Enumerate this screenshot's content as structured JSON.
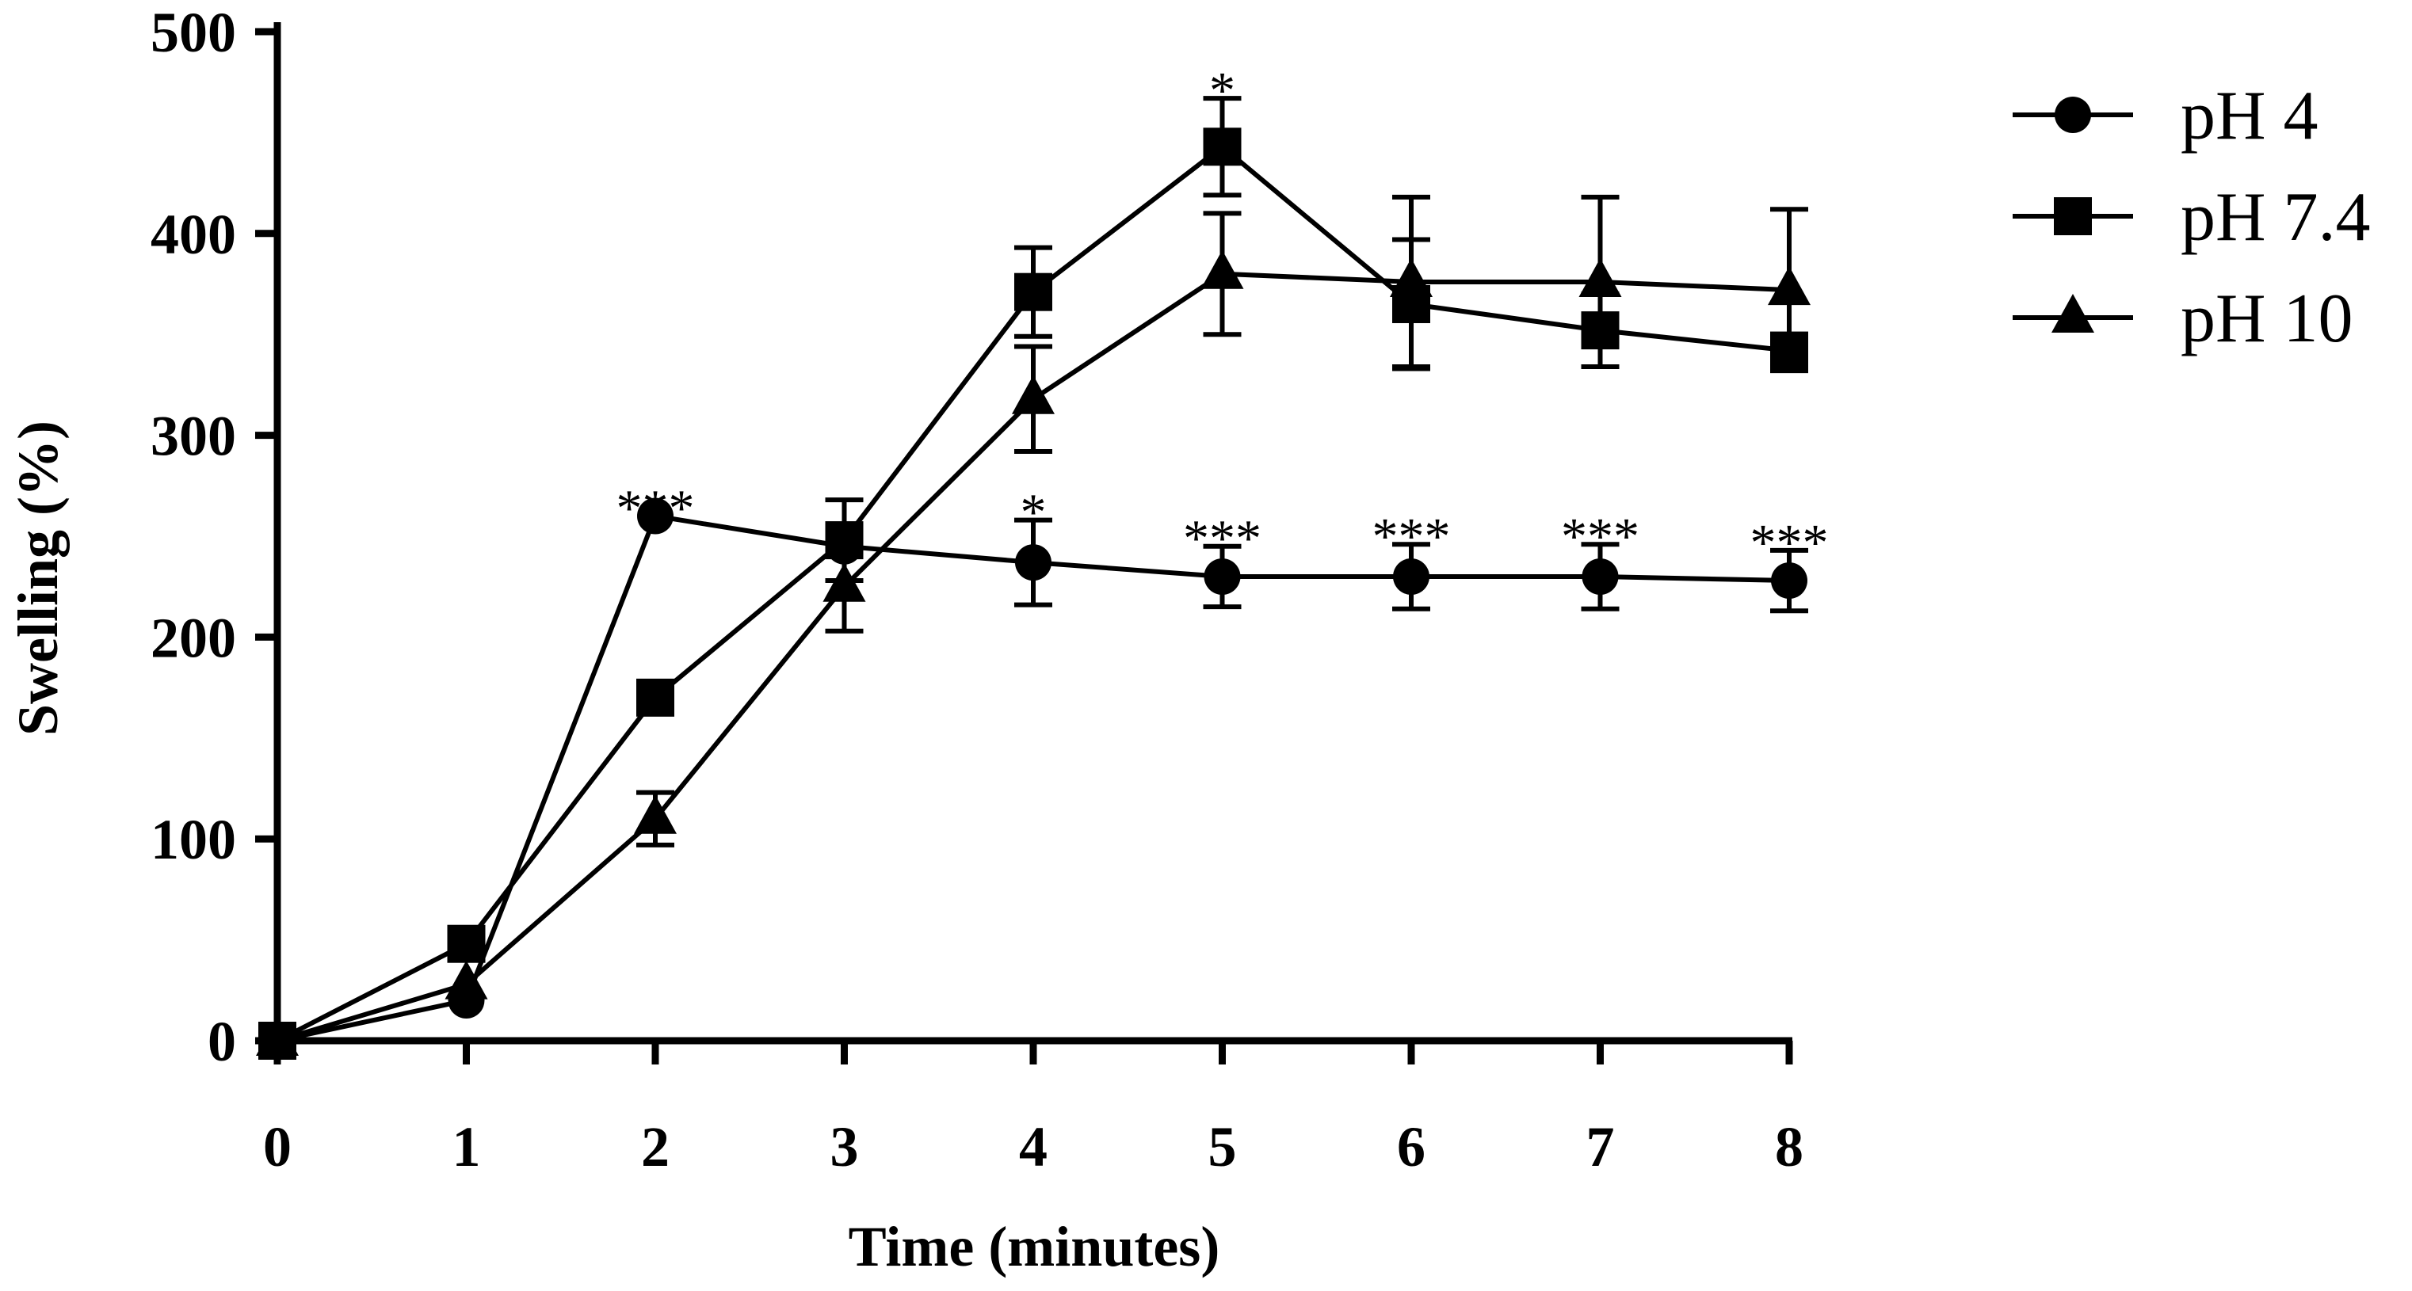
{
  "chart_data": {
    "type": "line",
    "title": "",
    "xlabel": "Time (minutes)",
    "ylabel": "Swelling (%)",
    "x": [
      0,
      1,
      2,
      3,
      4,
      5,
      6,
      7,
      8
    ],
    "xlim": [
      0,
      8
    ],
    "ylim": [
      0,
      500
    ],
    "xticks": [
      "0",
      "1",
      "2",
      "3",
      "4",
      "5",
      "6",
      "7",
      "8"
    ],
    "yticks": [
      0,
      100,
      200,
      300,
      400,
      500
    ],
    "grid": false,
    "legend_position": "top-right outside",
    "series": [
      {
        "name": "pH 4",
        "marker": "circle",
        "values": [
          0,
          20,
          260,
          245,
          237,
          230,
          230,
          230,
          228
        ],
        "errors": [
          0,
          0,
          0,
          0,
          21,
          15,
          16,
          16,
          15
        ]
      },
      {
        "name": "pH 7.4",
        "marker": "square",
        "values": [
          0,
          48,
          170,
          248,
          371,
          443,
          365,
          352,
          342
        ],
        "errors": [
          0,
          0,
          0,
          20,
          22,
          24,
          32,
          18,
          0
        ]
      },
      {
        "name": "pH 10",
        "marker": "triangle",
        "values": [
          0,
          28,
          110,
          225,
          318,
          380,
          376,
          376,
          372
        ],
        "errors": [
          0,
          0,
          13,
          22,
          26,
          30,
          42,
          42,
          40
        ]
      }
    ],
    "annotations": [
      {
        "x": 2,
        "y": 260,
        "text": "***"
      },
      {
        "x": 4,
        "y": 258,
        "text": "*"
      },
      {
        "x": 5,
        "y": 467,
        "text": "*"
      },
      {
        "x": 5,
        "y": 245,
        "text": "***"
      },
      {
        "x": 6,
        "y": 246,
        "text": "***"
      },
      {
        "x": 7,
        "y": 246,
        "text": "***"
      },
      {
        "x": 8,
        "y": 243,
        "text": "***"
      }
    ],
    "colors": {
      "line": "#000000",
      "background": "#ffffff"
    }
  }
}
